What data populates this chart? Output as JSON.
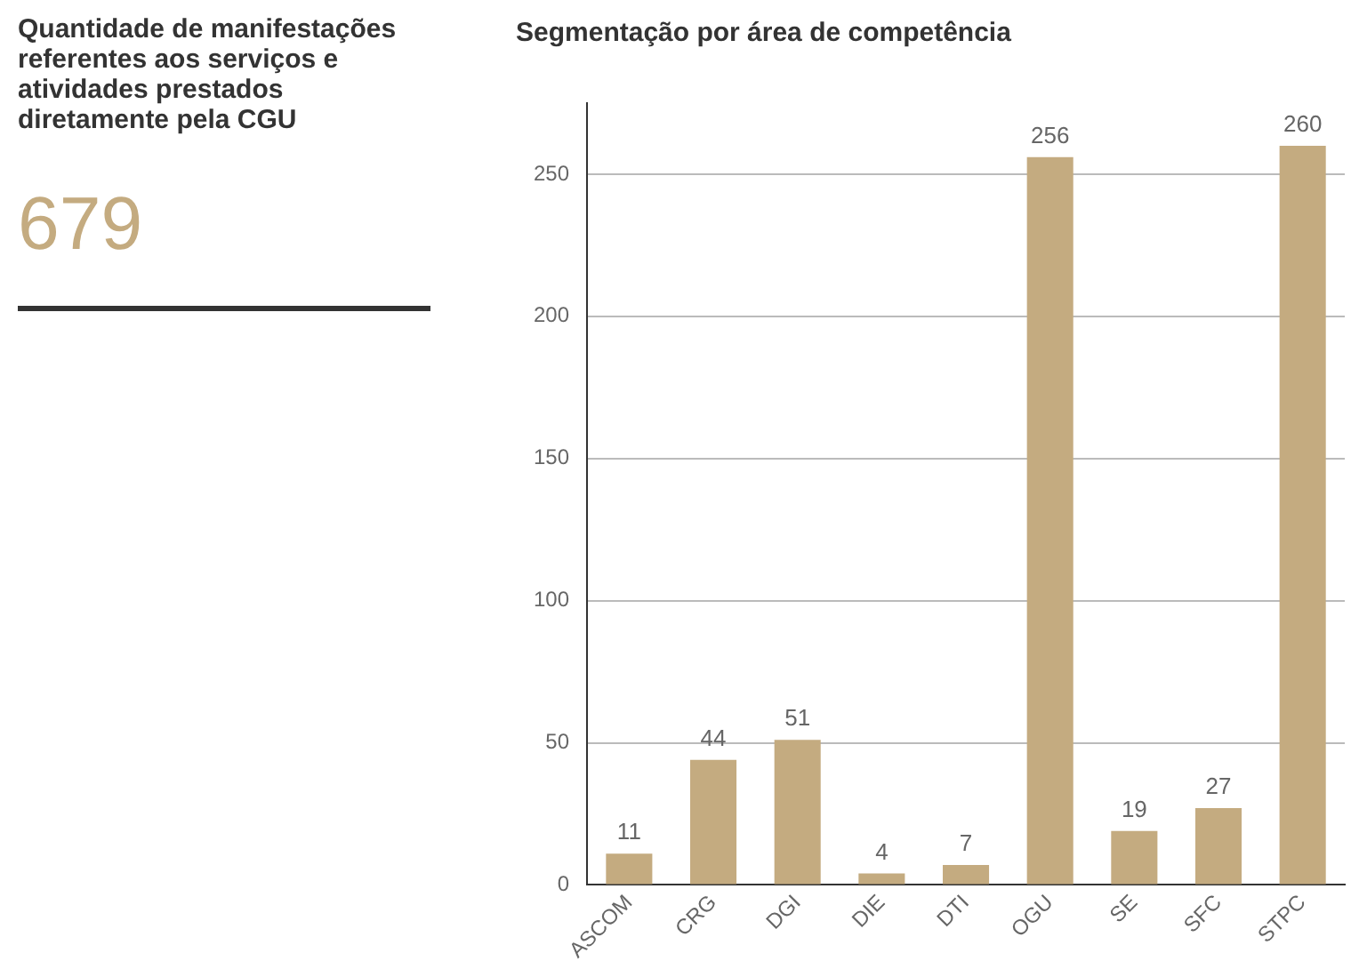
{
  "chart_data": [
    {
      "type": "other",
      "title": "Quantidade de manifestações referentes aos serviços e atividades prestados diretamente pela CGU",
      "annotations": [
        "679"
      ]
    },
    {
      "type": "bar",
      "title": "Segmentação por área de competência",
      "categories": [
        "ASCOM",
        "CRG",
        "DGI",
        "DIE",
        "DTI",
        "OGU",
        "SE",
        "SFC",
        "STPC"
      ],
      "values": [
        11,
        44,
        51,
        4,
        7,
        256,
        19,
        27,
        260
      ],
      "color": "#c4ab80",
      "ylim": [
        0,
        275
      ],
      "yticks": [
        0,
        50,
        100,
        150,
        200,
        250
      ],
      "grid": "y",
      "data_labels": true,
      "legend": false
    }
  ]
}
